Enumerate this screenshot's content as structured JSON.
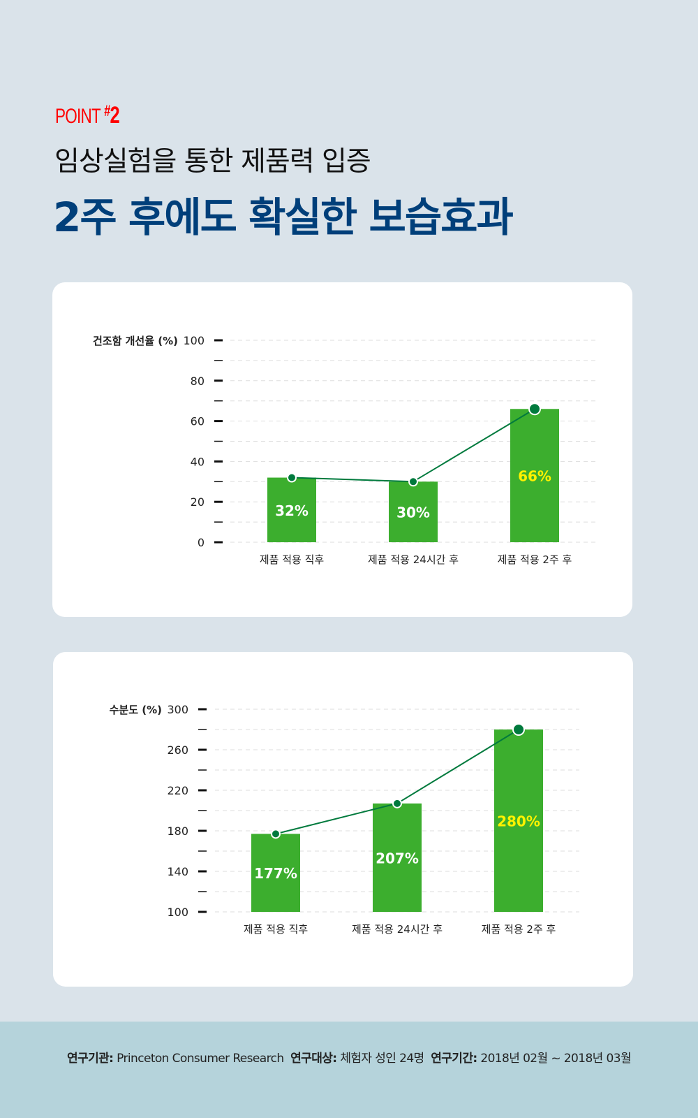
{
  "header": {
    "point_label": "POINT",
    "point_number_prefix": "#",
    "point_number": "2",
    "subtitle": "임상실험을 통한 제품력 입증",
    "title": "2주 후에도 확실한 보습효과"
  },
  "colors": {
    "bar": "#3cae2e",
    "line": "#007a3d",
    "highlight_label": "#fff200",
    "title": "#003f7a",
    "point": "#ff0000"
  },
  "chart_data": [
    {
      "type": "bar",
      "ylabel": "건조함 개선율 (%)",
      "ylim": [
        0,
        100
      ],
      "yticks": [
        0,
        20,
        40,
        60,
        80,
        100
      ],
      "grid": true,
      "categories": [
        "제품 적용 직후",
        "제품 적용 24시간 후",
        "제품 적용 2주 후"
      ],
      "values": [
        32,
        30,
        66
      ],
      "data_labels": [
        "32%",
        "30%",
        "66%"
      ],
      "overlay_line": true,
      "highlight_index": 2
    },
    {
      "type": "bar",
      "ylabel": "수분도 (%)",
      "ylim": [
        100,
        300
      ],
      "yticks": [
        100,
        140,
        180,
        220,
        260,
        300
      ],
      "grid": true,
      "categories": [
        "제품 적용 직후",
        "제품 적용 24시간 후",
        "제품 적용 2주 후"
      ],
      "values": [
        177,
        207,
        280
      ],
      "data_labels": [
        "177%",
        "207%",
        "280%"
      ],
      "overlay_line": true,
      "highlight_index": 2
    }
  ],
  "footer": {
    "org_label": "연구기관:",
    "org": "Princeton Consumer Research",
    "subject_label": "연구대상:",
    "subject": "체험자 성인 24명",
    "period_label": "연구기간:",
    "period": "2018년 02월 ~ 2018년 03월"
  }
}
